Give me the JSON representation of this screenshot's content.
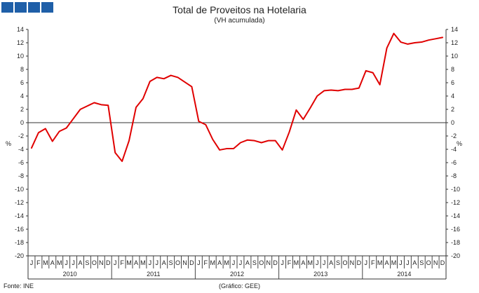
{
  "chart_data": {
    "type": "line",
    "title": "Total de Proveitos na Hotelaria",
    "subtitle": "(VH acumulada)",
    "ylabel_left": "%",
    "ylabel_right": "%",
    "ylim": [
      -20,
      14
    ],
    "yticks": [
      14,
      12,
      10,
      8,
      6,
      4,
      2,
      0,
      -2,
      -4,
      -6,
      -8,
      -10,
      -12,
      -14,
      -16,
      -18,
      -20
    ],
    "months": [
      "J",
      "F",
      "M",
      "A",
      "M",
      "J",
      "J",
      "A",
      "S",
      "O",
      "N",
      "D"
    ],
    "years": [
      "2010",
      "2011",
      "2012",
      "2013",
      "2014"
    ],
    "grid": false,
    "series": [
      {
        "color": "#e00000",
        "values": [
          -3.8,
          -1.5,
          -0.9,
          -2.8,
          -1.3,
          -0.8,
          0.6,
          2.0,
          2.5,
          3.0,
          2.7,
          2.6,
          -4.5,
          -5.8,
          -2.7,
          2.3,
          3.6,
          6.2,
          6.8,
          6.6,
          7.1,
          6.8,
          6.1,
          5.4,
          0.2,
          -0.3,
          -2.5,
          -4.1,
          -3.9,
          -3.9,
          -3.0,
          -2.6,
          -2.7,
          -3.0,
          -2.7,
          -2.7,
          -4.1,
          -1.4,
          1.9,
          0.5,
          2.2,
          4.0,
          4.8,
          4.9,
          4.8,
          5.0,
          5.0,
          5.2,
          7.8,
          7.5,
          5.7,
          11.2,
          13.4,
          12.1,
          11.8,
          12.0,
          12.1,
          12.4,
          12.6,
          12.8
        ]
      }
    ]
  },
  "footer": {
    "source": "Fonte: INE",
    "credit": "(Gráfico: GEE)"
  }
}
